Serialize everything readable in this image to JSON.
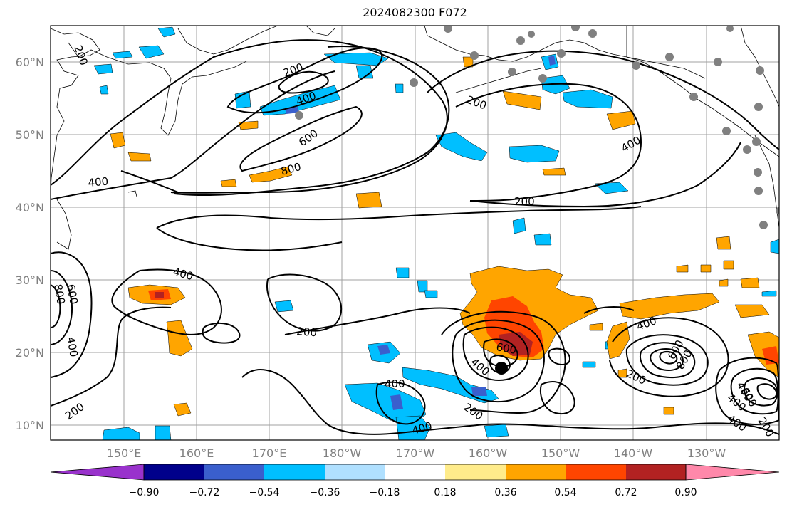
{
  "title": "2024082300 F072",
  "map": {
    "lat_labels": [
      "60°N",
      "50°N",
      "40°N",
      "30°N",
      "20°N",
      "10°N"
    ],
    "lon_labels": [
      "150°E",
      "160°E",
      "170°E",
      "180°W",
      "170°W",
      "160°W",
      "150°W",
      "140°W",
      "130°W"
    ],
    "contour_labels": [
      "200",
      "200",
      "400",
      "600",
      "800",
      "400",
      "200",
      "400",
      "200",
      "400",
      "200",
      "400",
      "600",
      "800",
      "400",
      "200",
      "400",
      "600",
      "400",
      "400",
      "200",
      "400",
      "600",
      "800",
      "200",
      "400",
      "200",
      "600",
      "400"
    ],
    "colors": {
      "land_outline": "#000000",
      "contour": "#000000",
      "grid": "#a0a0a0",
      "station_dot": "#808080"
    }
  },
  "colorbar": {
    "ticks": [
      "−0.90",
      "−0.72",
      "−0.54",
      "−0.36",
      "−0.18",
      "0.18",
      "0.36",
      "0.54",
      "0.72",
      "0.90"
    ],
    "colors": [
      "#9932cc",
      "#00008b",
      "#3a5fcd",
      "#00bfff",
      "#b0e0ff",
      "#ffffff",
      "#ffec8b",
      "#ffa500",
      "#ff4500",
      "#b22222",
      "#ff88aa"
    ]
  }
}
